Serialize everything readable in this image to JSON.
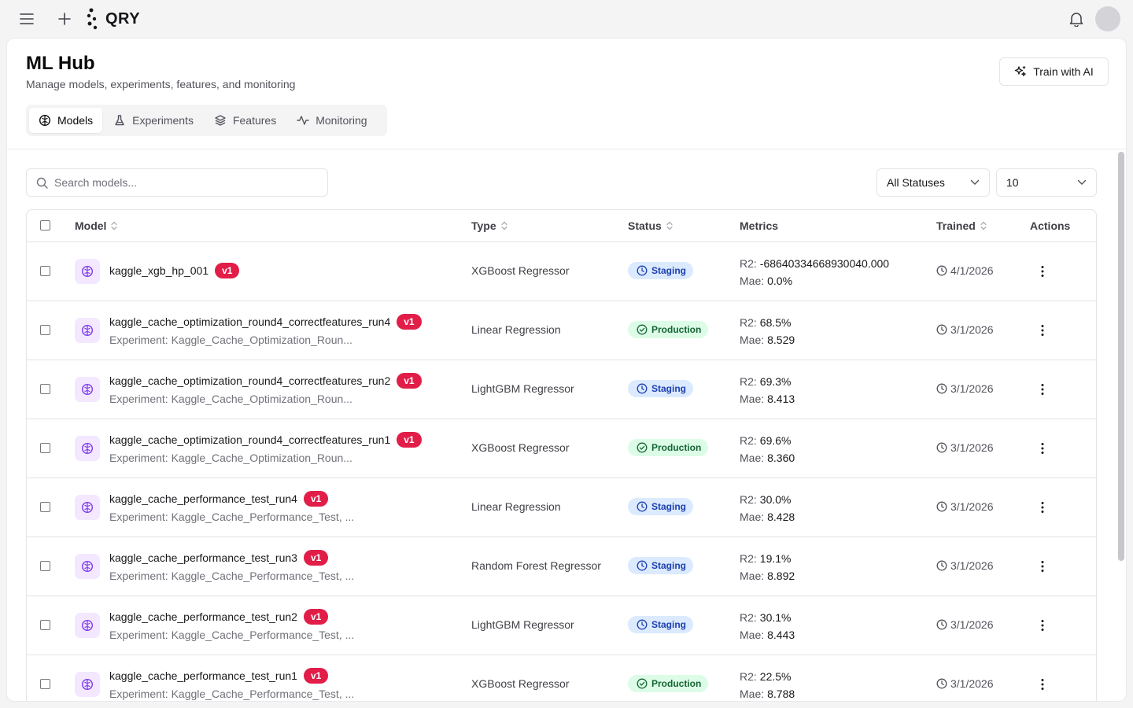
{
  "topbar": {
    "menu_icon": "menu-icon",
    "add_icon": "plus-icon",
    "logo_text": "QRY",
    "bell_icon": "bell-icon"
  },
  "header": {
    "title": "ML Hub",
    "subtitle": "Manage models, experiments, features, and monitoring",
    "train_button": "Train with AI"
  },
  "tabs": [
    {
      "label": "Models",
      "icon": "brain-icon",
      "active": true
    },
    {
      "label": "Experiments",
      "icon": "flask-icon",
      "active": false
    },
    {
      "label": "Features",
      "icon": "layers-icon",
      "active": false
    },
    {
      "label": "Monitoring",
      "icon": "activity-icon",
      "active": false
    }
  ],
  "toolbar": {
    "search_placeholder": "Search models...",
    "status_filter": "All Statuses",
    "page_size": "10"
  },
  "table": {
    "columns": {
      "model": "Model",
      "type": "Type",
      "status": "Status",
      "metrics": "Metrics",
      "trained": "Trained",
      "actions": "Actions"
    },
    "rows": [
      {
        "name": "kaggle_xgb_hp_001",
        "version": "v1",
        "experiment": "",
        "type": "XGBoost Regressor",
        "status": "Staging",
        "r2_label": "R2:",
        "r2": "-68640334668930040.000",
        "mae_label": "Mae:",
        "mae": "0.0%",
        "trained": "4/1/2026"
      },
      {
        "name": "kaggle_cache_optimization_round4_correctfeatures_run4",
        "version": "v1",
        "experiment": "Experiment: Kaggle_Cache_Optimization_Roun...",
        "type": "Linear Regression",
        "status": "Production",
        "r2_label": "R2:",
        "r2": "68.5%",
        "mae_label": "Mae:",
        "mae": "8.529",
        "trained": "3/1/2026"
      },
      {
        "name": "kaggle_cache_optimization_round4_correctfeatures_run2",
        "version": "v1",
        "experiment": "Experiment: Kaggle_Cache_Optimization_Roun...",
        "type": "LightGBM Regressor",
        "status": "Staging",
        "r2_label": "R2:",
        "r2": "69.3%",
        "mae_label": "Mae:",
        "mae": "8.413",
        "trained": "3/1/2026"
      },
      {
        "name": "kaggle_cache_optimization_round4_correctfeatures_run1",
        "version": "v1",
        "experiment": "Experiment: Kaggle_Cache_Optimization_Roun...",
        "type": "XGBoost Regressor",
        "status": "Production",
        "r2_label": "R2:",
        "r2": "69.6%",
        "mae_label": "Mae:",
        "mae": "8.360",
        "trained": "3/1/2026"
      },
      {
        "name": "kaggle_cache_performance_test_run4",
        "version": "v1",
        "experiment": "Experiment: Kaggle_Cache_Performance_Test, ...",
        "type": "Linear Regression",
        "status": "Staging",
        "r2_label": "R2:",
        "r2": "30.0%",
        "mae_label": "Mae:",
        "mae": "8.428",
        "trained": "3/1/2026"
      },
      {
        "name": "kaggle_cache_performance_test_run3",
        "version": "v1",
        "experiment": "Experiment: Kaggle_Cache_Performance_Test, ...",
        "type": "Random Forest Regressor",
        "status": "Staging",
        "r2_label": "R2:",
        "r2": "19.1%",
        "mae_label": "Mae:",
        "mae": "8.892",
        "trained": "3/1/2026"
      },
      {
        "name": "kaggle_cache_performance_test_run2",
        "version": "v1",
        "experiment": "Experiment: Kaggle_Cache_Performance_Test, ...",
        "type": "LightGBM Regressor",
        "status": "Staging",
        "r2_label": "R2:",
        "r2": "30.1%",
        "mae_label": "Mae:",
        "mae": "8.443",
        "trained": "3/1/2026"
      },
      {
        "name": "kaggle_cache_performance_test_run1",
        "version": "v1",
        "experiment": "Experiment: Kaggle_Cache_Performance_Test, ...",
        "type": "XGBoost Regressor",
        "status": "Production",
        "r2_label": "R2:",
        "r2": "22.5%",
        "mae_label": "Mae:",
        "mae": "8.788",
        "trained": "3/1/2026"
      }
    ]
  },
  "colors": {
    "version_badge": "#e11d48",
    "staging_bg": "#dbeafe",
    "production_bg": "#dcfce7",
    "model_icon_bg": "#f3e8ff"
  }
}
